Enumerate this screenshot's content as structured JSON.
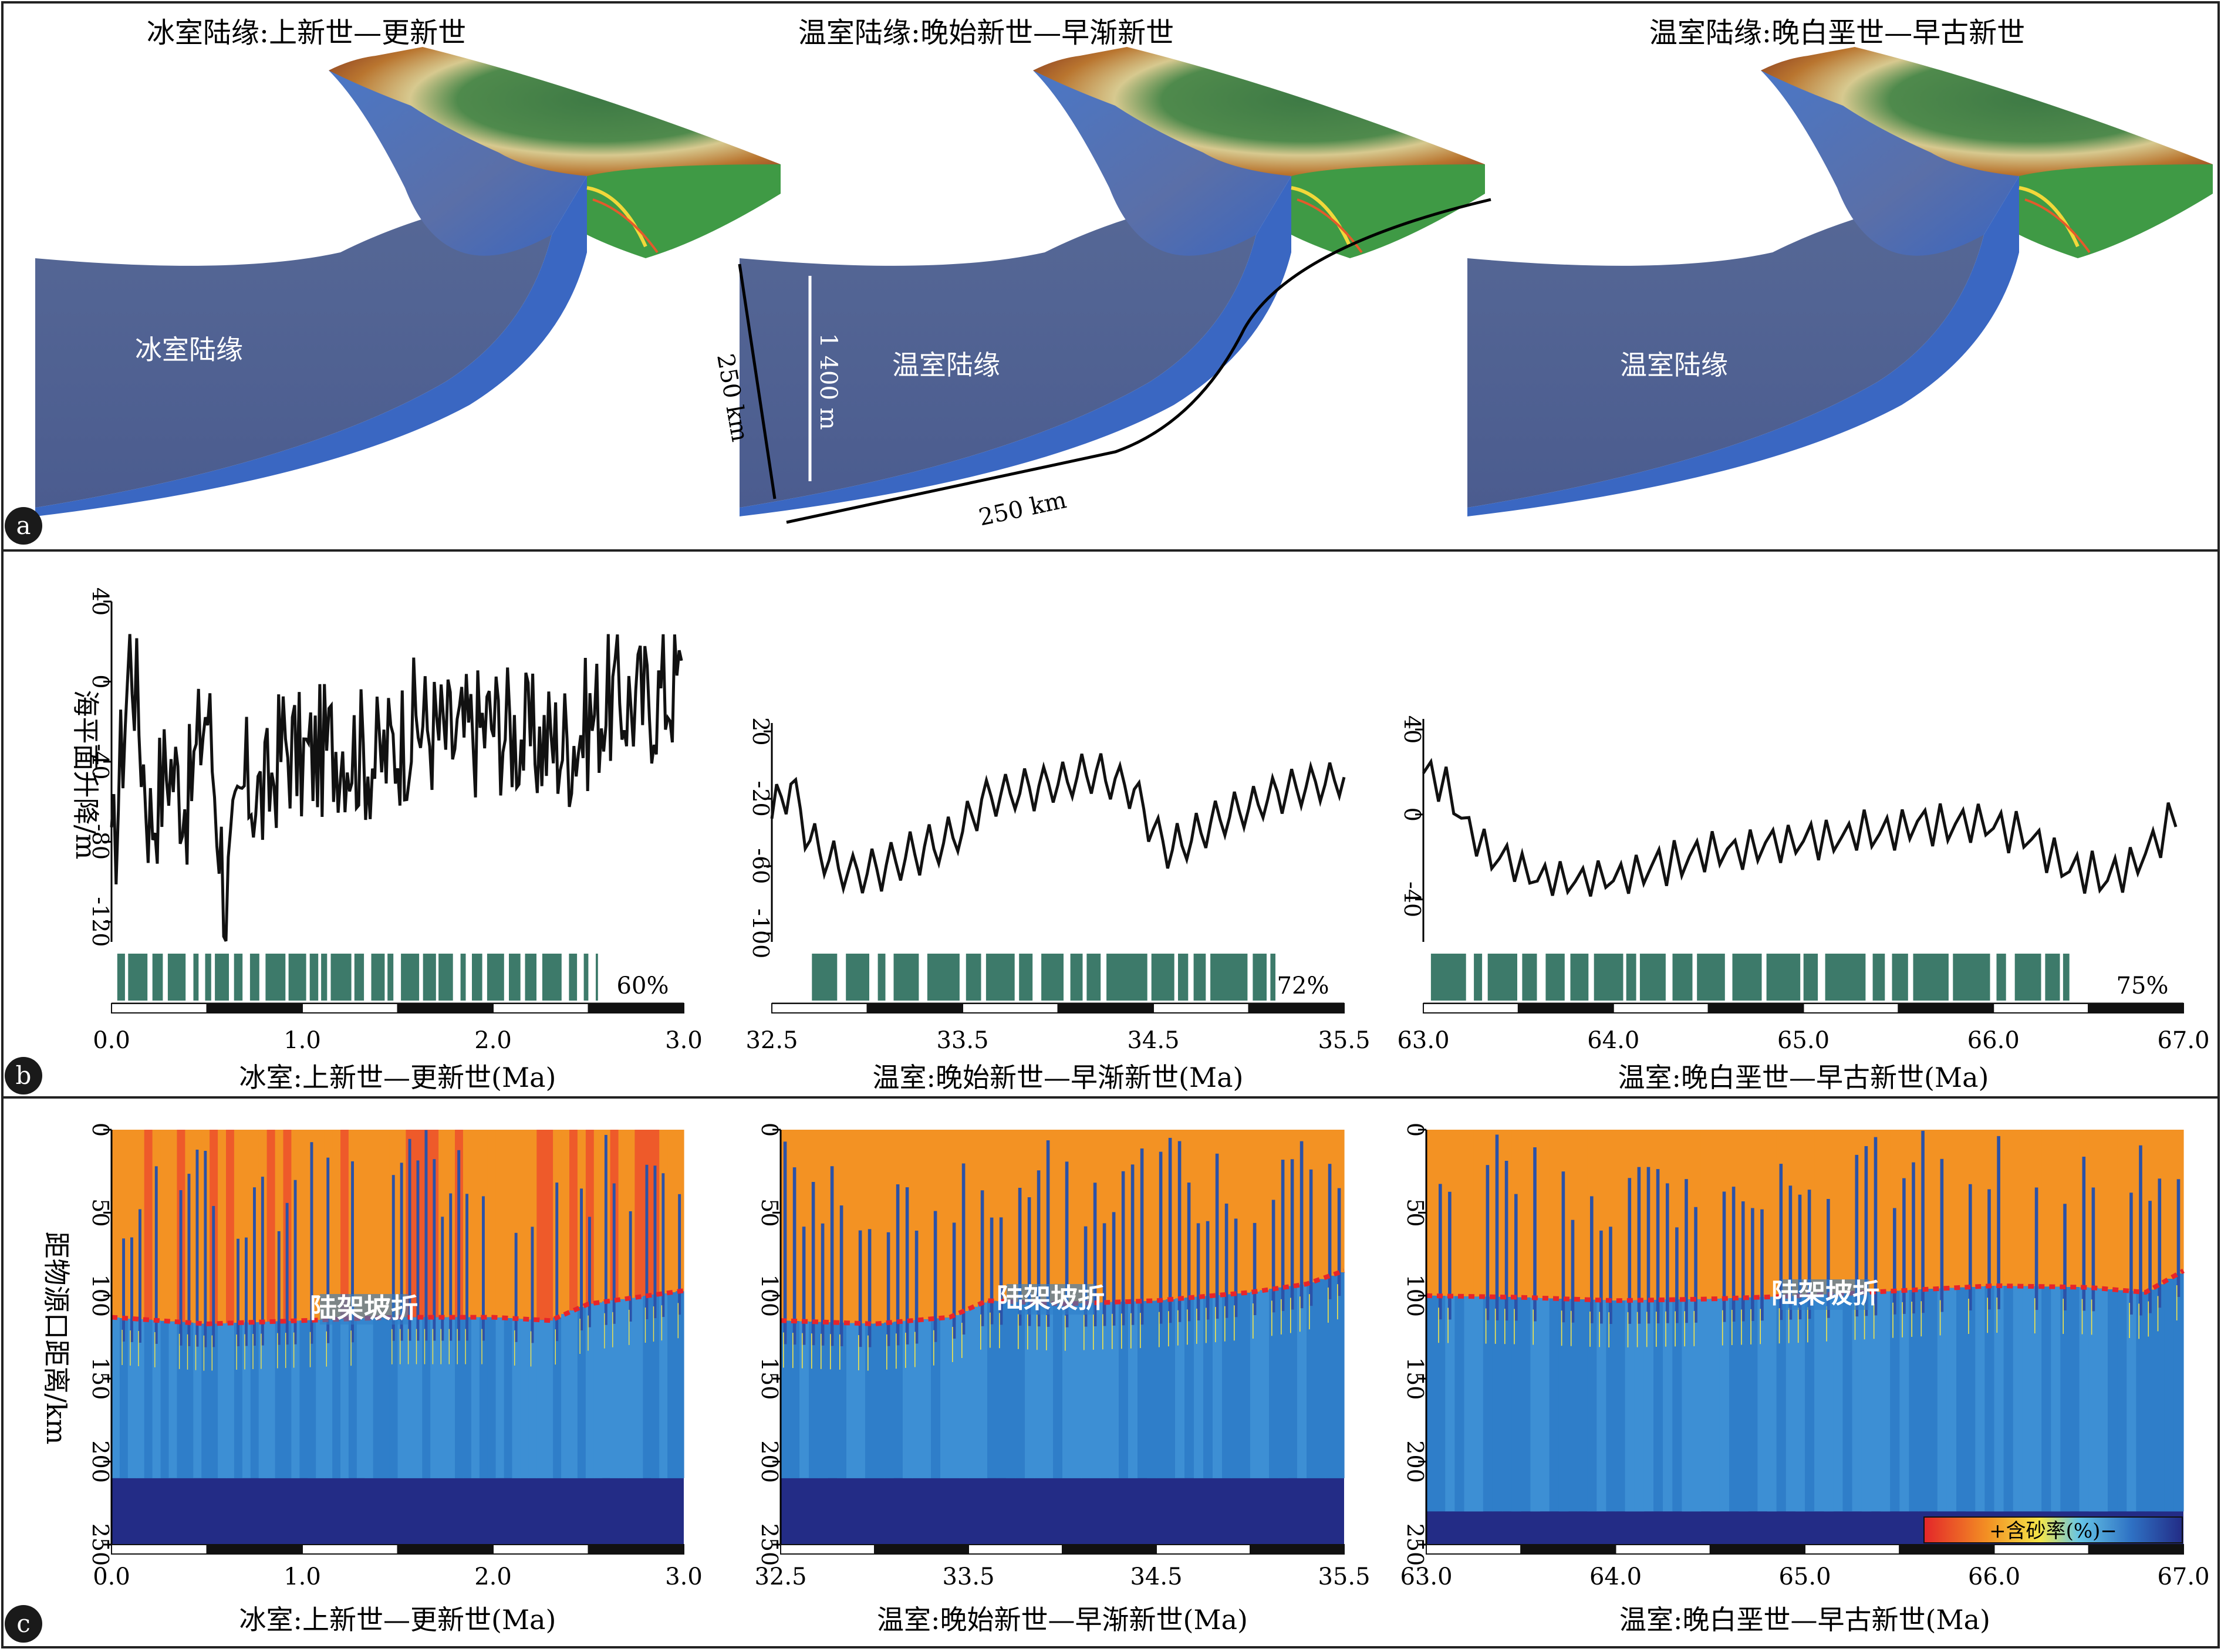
{
  "figure": {
    "panel_letters": [
      "a",
      "b",
      "c"
    ],
    "panel_a": {
      "titles": [
        "冰室陆缘:上新世—更新世",
        "温室陆缘:晚始新世—早渐新世",
        "温室陆缘:晚白垩世—早古新世"
      ],
      "block_labels": [
        "冰室陆缘",
        "温室陆缘",
        "温室陆缘"
      ],
      "dimensions": {
        "height": "1 400 m",
        "depth": "250 km",
        "length": "250 km"
      }
    },
    "panel_b": {
      "ylabel": "海平面升降/m",
      "percents": [
        "60%",
        "72%",
        "75%"
      ],
      "xlabels": [
        "冰室:上新世—更新世(Ma)",
        "温室:晚始新世—早渐新世(Ma)",
        "温室:晚白垩世—早古新世(Ma)"
      ]
    },
    "panel_c": {
      "ylabel": "距物源口距离/km",
      "shelf_break_label": "陆架坡折",
      "colorbar_label": "+含砂率(%)−",
      "xlabels": [
        "冰室:上新世—更新世(Ma)",
        "温室:晚始新世—早渐新世(Ma)",
        "温室:晚白垩世—早古新世(Ma)"
      ]
    }
  },
  "chart_data": [
    {
      "type": "line",
      "title": "",
      "xlabel": "冰室:上新世—更新世(Ma)",
      "ylabel": "海平面升降/m",
      "xlim": [
        0.0,
        3.0
      ],
      "ylim": [
        -130,
        40
      ],
      "xticks": [
        "0.0",
        "1.0",
        "2.0",
        "3.0"
      ],
      "yticks": [
        "40",
        "0",
        "-40",
        "-80",
        "-120"
      ],
      "series": [
        {
          "x": [
            0.0,
            0.1,
            0.2,
            0.3,
            0.4,
            0.5,
            0.6,
            0.7,
            0.8,
            0.9,
            1.0,
            1.2,
            1.4,
            1.6,
            1.8,
            2.0,
            2.2,
            2.4,
            2.6,
            2.8,
            3.0
          ],
          "y": [
            -100,
            20,
            -70,
            -40,
            -60,
            -10,
            -110,
            -50,
            -60,
            -30,
            -40,
            -30,
            -40,
            -20,
            -30,
            -20,
            -30,
            -30,
            -10,
            -10,
            0
          ]
        }
      ],
      "green_bar_percent": "60%"
    },
    {
      "type": "line",
      "title": "",
      "xlabel": "温室:晚始新世—早渐新世(Ma)",
      "ylabel": "",
      "xlim": [
        32.5,
        35.5
      ],
      "ylim": [
        -105,
        25
      ],
      "xticks": [
        "32.5",
        "33.5",
        "34.5",
        "35.5"
      ],
      "yticks": [
        "20",
        "-20",
        "-60",
        "-100"
      ],
      "series": [
        {
          "x": [
            32.5,
            32.6,
            32.7,
            32.9,
            33.1,
            33.3,
            33.5,
            33.6,
            33.8,
            34.0,
            34.2,
            34.4,
            34.5,
            34.6,
            34.8,
            35.0,
            35.2,
            35.4,
            35.5
          ],
          "y": [
            -30,
            -10,
            -45,
            -65,
            -60,
            -50,
            -40,
            -20,
            -15,
            -10,
            -5,
            -15,
            -40,
            -50,
            -35,
            -25,
            -15,
            -10,
            -5
          ]
        }
      ],
      "green_bar_percent": "72%"
    },
    {
      "type": "line",
      "title": "",
      "xlabel": "温室:晚白垩世—早古新世(Ma)",
      "ylabel": "",
      "xlim": [
        63.0,
        67.0
      ],
      "ylim": [
        -60,
        45
      ],
      "xticks": [
        "63.0",
        "64.0",
        "65.0",
        "66.0",
        "67.0"
      ],
      "yticks": [
        "40",
        "0",
        "-40"
      ],
      "series": [
        {
          "x": [
            63.0,
            63.1,
            63.3,
            63.6,
            64.0,
            64.4,
            64.8,
            65.2,
            65.6,
            66.0,
            66.2,
            66.4,
            66.6,
            66.8,
            67.0
          ],
          "y": [
            20,
            15,
            -15,
            -30,
            -30,
            -20,
            -15,
            -10,
            -5,
            -5,
            -10,
            -25,
            -30,
            -20,
            5
          ]
        }
      ],
      "green_bar_percent": "75%"
    },
    {
      "type": "heatmap",
      "title": "",
      "xlabel": "冰室:上新世—更新世(Ma)",
      "ylabel": "距物源口距离/km",
      "xlim": [
        0.0,
        3.0
      ],
      "ylim": [
        250,
        0
      ],
      "xticks": [
        "0.0",
        "1.0",
        "2.0",
        "3.0"
      ],
      "yticks": [
        "0",
        "50",
        "100",
        "150",
        "200",
        "250"
      ],
      "shelf_break": {
        "x": [
          0.0,
          0.5,
          1.0,
          1.5,
          2.0,
          2.3,
          2.5,
          3.0
        ],
        "y": [
          113,
          117,
          115,
          113,
          113,
          115,
          105,
          97
        ]
      },
      "annotation": "陆架坡折"
    },
    {
      "type": "heatmap",
      "title": "",
      "xlabel": "温室:晚始新世—早渐新世(Ma)",
      "ylabel": "",
      "xlim": [
        32.5,
        35.5
      ],
      "ylim": [
        250,
        0
      ],
      "xticks": [
        "32.5",
        "33.5",
        "34.5",
        "35.5"
      ],
      "yticks": [
        "0",
        "50",
        "100",
        "150",
        "200",
        "250"
      ],
      "shelf_break": {
        "x": [
          32.5,
          33.0,
          33.4,
          33.6,
          34.0,
          34.5,
          35.0,
          35.3,
          35.5
        ],
        "y": [
          115,
          117,
          113,
          103,
          105,
          103,
          98,
          93,
          85
        ]
      },
      "annotation": "陆架坡折"
    },
    {
      "type": "heatmap",
      "title": "",
      "xlabel": "温室:晚白垩世—早古新世(Ma)",
      "ylabel": "",
      "xlim": [
        63.0,
        67.0
      ],
      "ylim": [
        250,
        0
      ],
      "xticks": [
        "63.0",
        "64.0",
        "65.0",
        "66.0",
        "67.0"
      ],
      "yticks": [
        "0",
        "50",
        "100",
        "150",
        "200",
        "250"
      ],
      "shelf_break": {
        "x": [
          63.0,
          63.5,
          64.0,
          64.5,
          65.0,
          65.5,
          66.0,
          66.5,
          66.8,
          67.0
        ],
        "y": [
          100,
          101,
          103,
          102,
          100,
          97,
          94,
          95,
          98,
          85
        ]
      },
      "annotation": "陆架坡折",
      "colorbar_label": "+含砂率(%)−"
    }
  ]
}
